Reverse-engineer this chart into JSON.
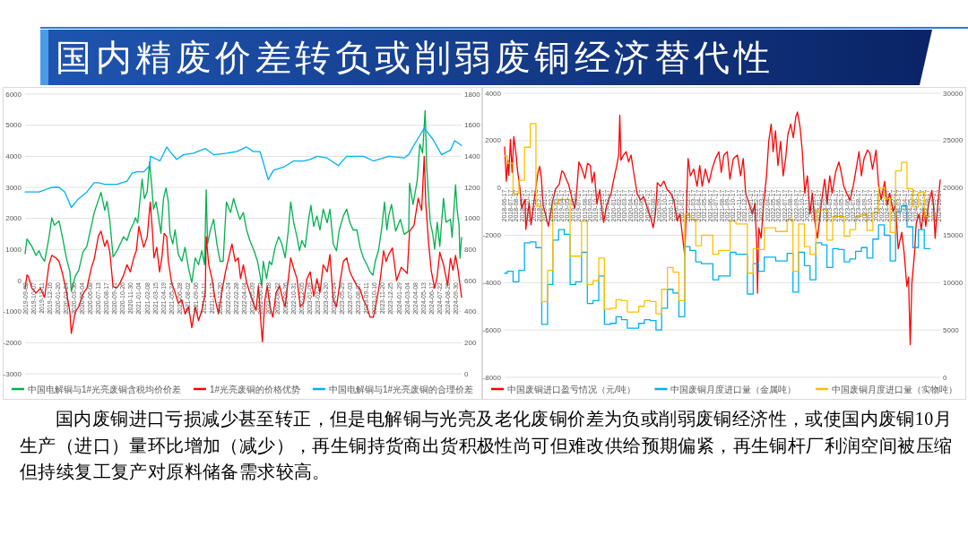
{
  "chart_data": [
    {
      "type": "line",
      "title": "国内精废价差转负或削弱废铜经济替代性",
      "annotations": [
        "国内废铜进口亏损减少甚至转正，但是电解铜与光亮及老化废铜价差为负或削弱废铜经济性，或使国内废铜10月生产（进口）量环比增加（减少），再生铜持货商出货积极性尚可但难改供给预期偏紧，再生铜杆厂利润空间被压缩但持续复工复产对原料储备需求较高。"
      ],
      "xlim": [
        "2019-09-02",
        "2024-10-25"
      ],
      "xticks": [
        "2019-09-02",
        "2019-10-07",
        "2019-11-11",
        "2019-12-16",
        "2020-01-20",
        "2020-02-24",
        "2020-03-30",
        "2020-05-04",
        "2020-06-08",
        "2020-07-13",
        "2020-08-17",
        "2020-09-21",
        "2020-10-26",
        "2020-11-30",
        "2021-01-04",
        "2021-02-08",
        "2021-03-15",
        "2021-04-19",
        "2021-05-24",
        "2021-06-28",
        "2021-08-02",
        "2021-09-06",
        "2021-10-11",
        "2021-11-15",
        "2021-12-20",
        "2022-01-24",
        "2022-02-28",
        "2022-04-04",
        "2022-05-09",
        "2022-06-13",
        "2022-07-18",
        "2022-08-22",
        "2022-09-26",
        "2022-10-31",
        "2022-12-05",
        "2023-01-09",
        "2023-02-13",
        "2023-03-20",
        "2023-04-24",
        "2023-05-29",
        "2023-07-03",
        "2023-08-07",
        "2023-09-11",
        "2023-10-16",
        "2023-11-20",
        "2023-12-25",
        "2024-01-29",
        "2024-03-04",
        "2024-04-08",
        "2024-05-13",
        "2024-06-17",
        "2024-07-22",
        "2024-08-26",
        "2024-09-30"
      ],
      "ylim": [
        -3000,
        6000
      ],
      "yticks": [
        -3000,
        -2000,
        -1000,
        0,
        1000,
        2000,
        3000,
        4000,
        5000,
        6000
      ],
      "y2lim": [
        0,
        1800
      ],
      "y2ticks": [
        0,
        200,
        400,
        600,
        800,
        1000,
        1200,
        1400,
        1600,
        1800
      ],
      "grid": "y",
      "legend": "bottom",
      "series": [
        {
          "name": "中国电解铜与1#光亮废铜含税均价价差",
          "color": "#00b050",
          "x": [
            "2019-09-02",
            "2019-09-10",
            "2019-10-01",
            "2019-10-19",
            "2019-11-01",
            "2019-11-12",
            "2019-11-25",
            "2019-12-14",
            "2019-12-26",
            "2020-01-06",
            "2020-01-26",
            "2020-02-10",
            "2020-02-27",
            "2020-03-13",
            "2020-03-19",
            "2020-04-05",
            "2020-04-20",
            "2020-05-08",
            "2020-05-25",
            "2020-06-14",
            "2020-06-25",
            "2020-07-14",
            "2020-07-25",
            "2020-08-10",
            "2020-08-20",
            "2020-09-01",
            "2020-09-15",
            "2020-10-02",
            "2020-10-16",
            "2020-10-30",
            "2020-11-14",
            "2020-11-28",
            "2020-12-13",
            "2020-12-20",
            "2020-12-30",
            "2021-01-08",
            "2021-01-18",
            "2021-01-28",
            "2021-02-09",
            "2021-02-19",
            "2021-02-28",
            "2021-03-08",
            "2021-03-19",
            "2021-03-29",
            "2021-04-09",
            "2021-04-20",
            "2021-05-01",
            "2021-05-11",
            "2021-05-18",
            "2021-05-30",
            "2021-06-09",
            "2021-06-23",
            "2021-07-08",
            "2021-07-22",
            "2021-08-06",
            "2021-08-20",
            "2021-09-04",
            "2021-09-18",
            "2021-10-02",
            "2021-10-14",
            "2021-10-21",
            "2021-10-27",
            "2021-11-08",
            "2021-11-22",
            "2021-12-06",
            "2021-12-20",
            "2022-01-02",
            "2022-01-16",
            "2022-02-03",
            "2022-02-16",
            "2022-03-01",
            "2022-03-15",
            "2022-03-30",
            "2022-04-13",
            "2022-04-27",
            "2022-05-15",
            "2022-05-30",
            "2022-06-10",
            "2022-06-17",
            "2022-06-24",
            "2022-07-08",
            "2022-07-20",
            "2022-07-30",
            "2022-08-14",
            "2022-08-29",
            "2022-09-12",
            "2022-09-26",
            "2022-10-10",
            "2022-10-20",
            "2022-11-02",
            "2022-11-16",
            "2022-11-27",
            "2022-12-07",
            "2022-12-21",
            "2023-01-05",
            "2023-01-15",
            "2023-01-27",
            "2023-02-10",
            "2023-02-23",
            "2023-03-09",
            "2023-03-26",
            "2023-04-07",
            "2023-04-21",
            "2023-05-05",
            "2023-05-17",
            "2023-06-04",
            "2023-06-18",
            "2023-07-02",
            "2023-07-16",
            "2023-08-01",
            "2023-08-15",
            "2023-08-29",
            "2023-09-13",
            "2023-09-27",
            "2023-10-09",
            "2023-10-19",
            "2023-11-02",
            "2023-11-17",
            "2023-11-28",
            "2023-12-08",
            "2023-12-16",
            "2023-12-28",
            "2024-01-15",
            "2024-02-04",
            "2024-02-21",
            "2024-03-11",
            "2024-03-15",
            "2024-03-30",
            "2024-04-17",
            "2024-04-28",
            "2024-05-10",
            "2024-05-21",
            "2024-05-28",
            "2024-06-12",
            "2024-06-23",
            "2024-07-01",
            "2024-07-12",
            "2024-07-23",
            "2024-08-08",
            "2024-08-19",
            "2024-09-07",
            "2024-09-14",
            "2024-09-29",
            "2024-10-06",
            "2024-10-14",
            "2024-10-18",
            "2024-10-25"
          ],
          "values": [
            870,
            1340,
            1100,
            810,
            960,
            760,
            620,
            1390,
            2020,
            1780,
            1920,
            1390,
            720,
            280,
            -350,
            140,
            330,
            910,
            1100,
            1780,
            2170,
            2600,
            2840,
            2260,
            2550,
            1920,
            760,
            960,
            1180,
            1410,
            1290,
            1630,
            1860,
            2020,
            1860,
            2530,
            3260,
            2640,
            2870,
            3820,
            3090,
            2300,
            2530,
            2080,
            1520,
            2640,
            2980,
            2530,
            1520,
            1180,
            1630,
            840,
            620,
            1070,
            390,
            -60,
            730,
            510,
            960,
            510,
            2920,
            1180,
            1630,
            1970,
            1180,
            620,
            620,
            2530,
            2190,
            2640,
            2300,
            1970,
            2190,
            1630,
            1290,
            960,
            620,
            170,
            -170,
            620,
            60,
            620,
            510,
            1070,
            1410,
            1180,
            730,
            1630,
            2530,
            1860,
            1410,
            960,
            1290,
            1070,
            1970,
            2420,
            1740,
            2080,
            1630,
            2300,
            1860,
            2300,
            1180,
            960,
            1630,
            2080,
            2300,
            1860,
            1630,
            1630,
            1070,
            730,
            510,
            280,
            170,
            620,
            960,
            1740,
            2530,
            1630,
            2080,
            2450,
            1590,
            1970,
            1490,
            1590,
            3130,
            2450,
            3230,
            4390,
            4100,
            5470,
            3610,
            1880,
            1490,
            1010,
            1880,
            1100,
            2650,
            1880,
            1970,
            1390,
            3080,
            2260,
            1780,
            720,
            1390
          ]
        },
        {
          "name": "1#光亮废铜的价格优势",
          "color": "#ff0000",
          "x": [
            "2019-09-02",
            "2019-09-10",
            "2019-09-16",
            "2019-10-01",
            "2019-10-19",
            "2019-11-07",
            "2019-11-25",
            "2019-12-14",
            "2019-12-26",
            "2020-01-14",
            "2020-01-26",
            "2020-02-10",
            "2020-02-27",
            "2020-03-13",
            "2020-03-19",
            "2020-04-05",
            "2020-04-20",
            "2020-05-08",
            "2020-05-25",
            "2020-06-14",
            "2020-06-25",
            "2020-07-14",
            "2020-07-25",
            "2020-08-10",
            "2020-08-20",
            "2020-09-01",
            "2020-09-15",
            "2020-10-02",
            "2020-10-16",
            "2020-10-30",
            "2020-11-14",
            "2020-11-28",
            "2020-12-13",
            "2020-12-24",
            "2021-01-04",
            "2021-01-14",
            "2021-01-25",
            "2021-02-09",
            "2021-02-22",
            "2021-03-03",
            "2021-03-10",
            "2021-03-22",
            "2021-04-03",
            "2021-04-13",
            "2021-04-23",
            "2021-05-04",
            "2021-05-11",
            "2021-05-25",
            "2021-06-09",
            "2021-06-23",
            "2021-07-08",
            "2021-07-22",
            "2021-08-06",
            "2021-08-20",
            "2021-09-04",
            "2021-09-18",
            "2021-10-02",
            "2021-10-17",
            "2021-10-21",
            "2021-11-01",
            "2021-11-15",
            "2021-11-29",
            "2021-12-13",
            "2021-12-27",
            "2022-01-12",
            "2022-01-26",
            "2022-02-09",
            "2022-02-23",
            "2022-03-08",
            "2022-03-18",
            "2022-03-30",
            "2022-04-13",
            "2022-04-27",
            "2022-05-12",
            "2022-05-24",
            "2022-06-03",
            "2022-06-13",
            "2022-06-20",
            "2022-07-01",
            "2022-07-11",
            "2022-07-23",
            "2022-08-04",
            "2022-08-18",
            "2022-09-02",
            "2022-09-16",
            "2022-09-26",
            "2022-10-10",
            "2022-10-20",
            "2022-11-02",
            "2022-11-16",
            "2022-11-30",
            "2022-12-14",
            "2022-12-29",
            "2023-01-12",
            "2023-01-27",
            "2023-02-10",
            "2023-02-23",
            "2023-03-09",
            "2023-03-26",
            "2023-04-07",
            "2023-04-21",
            "2023-05-05",
            "2023-05-20",
            "2023-06-04",
            "2023-06-18",
            "2023-07-02",
            "2023-07-16",
            "2023-08-01",
            "2023-08-15",
            "2023-08-29",
            "2023-09-13",
            "2023-09-27",
            "2023-10-11",
            "2023-10-26",
            "2023-11-10",
            "2023-11-24",
            "2023-12-05",
            "2023-12-16",
            "2024-01-01",
            "2024-01-19",
            "2024-02-08",
            "2024-03-05",
            "2024-03-15",
            "2024-04-03",
            "2024-04-21",
            "2024-05-06",
            "2024-05-17",
            "2024-05-24",
            "2024-06-05",
            "2024-06-16",
            "2024-07-01",
            "2024-07-12",
            "2024-07-23",
            "2024-08-08",
            "2024-08-26",
            "2024-09-07",
            "2024-09-18",
            "2024-09-29",
            "2024-10-10",
            "2024-10-25"
          ],
          "values": [
            -250,
            180,
            140,
            -250,
            -400,
            -250,
            -540,
            520,
            810,
            720,
            620,
            230,
            -350,
            -1020,
            -1700,
            -1020,
            -830,
            -440,
            -250,
            430,
            670,
            1440,
            1590,
            1100,
            1300,
            910,
            -200,
            -230,
            -60,
            170,
            510,
            280,
            730,
            960,
            1740,
            1410,
            1070,
            1410,
            2530,
            1630,
            730,
            1070,
            280,
            730,
            1520,
            1410,
            620,
            -60,
            -390,
            -730,
            -620,
            -1070,
            -840,
            -1520,
            -840,
            -1290,
            -960,
            -390,
            1410,
            510,
            60,
            -620,
            -1070,
            -390,
            280,
            730,
            1180,
            620,
            730,
            60,
            510,
            -60,
            -390,
            -730,
            -960,
            -170,
            -1290,
            -1970,
            -620,
            -170,
            -840,
            -1180,
            -390,
            -170,
            -620,
            -840,
            60,
            730,
            390,
            60,
            -840,
            -730,
            60,
            280,
            -510,
            60,
            -390,
            510,
            280,
            840,
            -620,
            -840,
            -60,
            620,
            730,
            280,
            60,
            -170,
            -280,
            -620,
            -840,
            -1180,
            -1180,
            -620,
            60,
            960,
            620,
            840,
            1050,
            0,
            430,
            230,
            1590,
            1780,
            2650,
            2260,
            4000,
            2450,
            1200,
            330,
            -250,
            140,
            910,
            520,
            -150,
            720,
            330,
            810,
            330,
            -540
          ]
        },
        {
          "name": "中国电解铜与1#光亮废铜的合理价差",
          "color": "#00b0f0",
          "axis": "y2",
          "x": [
            "2019-09-02",
            "2019-11-01",
            "2019-12-26",
            "2020-01-26",
            "2020-02-20",
            "2020-03-05",
            "2020-03-19",
            "2020-04-15",
            "2020-05-25",
            "2020-06-25",
            "2020-07-14",
            "2020-08-10",
            "2020-10-02",
            "2020-11-14",
            "2020-12-05",
            "2020-12-27",
            "2021-01-25",
            "2021-02-20",
            "2021-02-23",
            "2021-04-05",
            "2021-05-04",
            "2021-05-18",
            "2021-06-16",
            "2021-07-15",
            "2021-08-28",
            "2021-10-17",
            "2021-11-22",
            "2022-01-19",
            "2022-03-01",
            "2022-04-13",
            "2022-05-12",
            "2022-06-10",
            "2022-06-24",
            "2022-07-15",
            "2022-08-07",
            "2022-09-19",
            "2022-11-02",
            "2022-12-14",
            "2023-01-12",
            "2023-02-10",
            "2023-03-24",
            "2023-05-13",
            "2023-06-18",
            "2023-08-30",
            "2023-10-11",
            "2023-11-24",
            "2023-12-16",
            "2024-02-21",
            "2024-03-11",
            "2024-04-06",
            "2024-05-17",
            "2024-06-23",
            "2024-07-31",
            "2024-09-07",
            "2024-09-25",
            "2024-10-25"
          ],
          "values": [
            1170,
            1170,
            1200,
            1200,
            1170,
            1120,
            1070,
            1120,
            1170,
            1230,
            1230,
            1220,
            1220,
            1240,
            1290,
            1300,
            1300,
            1340,
            1400,
            1370,
            1460,
            1430,
            1380,
            1410,
            1420,
            1450,
            1410,
            1420,
            1430,
            1460,
            1430,
            1430,
            1360,
            1250,
            1310,
            1330,
            1370,
            1370,
            1380,
            1400,
            1390,
            1340,
            1400,
            1400,
            1370,
            1390,
            1400,
            1390,
            1410,
            1480,
            1580,
            1510,
            1410,
            1440,
            1500,
            1470
          ]
        }
      ]
    },
    {
      "type": "line",
      "xlim": [
        "2018-06-17",
        "2024-10-25"
      ],
      "xticks": [
        "2018-06-17",
        "2018-07-17",
        "2018-08-17",
        "2018-09-17",
        "2018-10-17",
        "2018-11-17",
        "2018-12-17",
        "2019-01-17",
        "2019-02-17",
        "2019-03-17",
        "2019-04-17",
        "2019-05-17",
        "2019-06-17",
        "2019-07-17",
        "2019-08-17",
        "2019-09-17",
        "2019-10-17",
        "2019-11-17",
        "2019-12-17",
        "2020-01-17",
        "2020-02-17",
        "2020-03-17",
        "2020-04-17",
        "2020-05-17",
        "2020-06-17",
        "2020-07-17",
        "2020-08-17",
        "2020-09-17",
        "2020-10-17",
        "2020-11-17",
        "2020-12-17",
        "2021-01-17",
        "2021-02-17",
        "2021-03-17",
        "2021-04-17",
        "2021-05-17",
        "2021-06-17",
        "2021-07-17",
        "2021-08-17",
        "2021-09-17",
        "2021-10-17",
        "2021-11-17",
        "2021-12-17",
        "2022-01-17",
        "2022-02-17",
        "2022-03-17",
        "2022-04-17",
        "2022-05-17",
        "2022-06-17",
        "2022-07-17",
        "2022-08-17",
        "2022-09-17",
        "2022-10-17",
        "2022-11-17",
        "2022-12-17",
        "2023-01-17",
        "2023-02-17",
        "2023-03-17",
        "2023-04-17",
        "2023-05-17",
        "2023-06-17",
        "2023-07-17",
        "2023-08-17",
        "2023-09-17",
        "2023-10-17",
        "2023-11-17",
        "2023-12-17",
        "2024-01-17",
        "2024-02-17",
        "2024-03-17",
        "2024-04-17",
        "2024-05-17",
        "2024-06-17",
        "2024-07-17",
        "2024-08-17",
        "2024-09-17",
        "2024-10-17"
      ],
      "ylim": [
        -8000,
        4000
      ],
      "yticks": [
        -8000,
        -6000,
        -4000,
        -2000,
        0,
        2000,
        4000
      ],
      "y2lim": [
        0,
        30000
      ],
      "y2ticks": [
        0,
        5000,
        10000,
        15000,
        20000,
        25000,
        30000
      ],
      "grid": "y",
      "legend": "bottom",
      "series": [
        {
          "name": "中国废铜进口盈亏情况（元/吨）",
          "color": "#ff0000",
          "x": [
            "2018-06-17",
            "2018-06-26",
            "2018-07-04",
            "2018-07-09",
            "2018-07-18",
            "2018-07-27",
            "2018-08-05",
            "2018-08-19",
            "2018-08-23",
            "2018-09-07",
            "2018-09-16",
            "2018-10-04",
            "2018-10-08",
            "2018-10-26",
            "2018-11-05",
            "2018-11-24",
            "2018-12-12",
            "2018-12-21",
            "2018-12-30",
            "2019-01-08",
            "2019-01-25",
            "2019-02-05",
            "2019-02-19",
            "2019-03-02",
            "2019-03-16",
            "2019-04-04",
            "2019-04-18",
            "2019-04-27",
            "2019-05-10",
            "2019-05-24",
            "2019-06-12",
            "2019-06-26",
            "2019-07-04",
            "2019-07-18",
            "2019-08-01",
            "2019-08-19",
            "2019-09-02",
            "2019-09-17",
            "2019-09-26",
            "2019-10-08",
            "2019-10-22",
            "2019-11-06",
            "2019-11-18",
            "2019-11-27",
            "2019-12-11",
            "2019-12-23",
            "2020-01-06",
            "2020-01-20",
            "2020-02-03",
            "2020-02-15",
            "2020-02-21",
            "2020-02-27",
            "2020-03-12",
            "2020-03-26",
            "2020-04-08",
            "2020-04-21",
            "2020-05-05",
            "2020-05-23",
            "2020-06-10",
            "2020-06-27",
            "2020-07-15",
            "2020-08-03",
            "2020-08-17",
            "2020-08-29",
            "2020-09-08",
            "2020-09-25",
            "2020-10-13",
            "2020-10-30",
            "2020-11-18",
            "2020-12-05",
            "2020-12-23",
            "2021-01-07",
            "2021-01-19",
            "2021-02-01",
            "2021-02-11",
            "2021-02-19",
            "2021-03-03",
            "2021-03-21",
            "2021-04-08",
            "2021-04-22",
            "2021-05-05",
            "2021-05-22",
            "2021-06-10",
            "2021-06-27",
            "2021-07-15",
            "2021-08-02",
            "2021-08-15",
            "2021-08-29",
            "2021-09-16",
            "2021-09-30",
            "2021-10-18",
            "2021-11-09",
            "2021-11-26",
            "2021-12-10",
            "2021-12-23",
            "2022-01-10",
            "2022-01-28",
            "2022-02-10",
            "2022-02-20",
            "2022-02-24",
            "2022-03-03",
            "2022-03-15",
            "2022-03-29",
            "2022-04-13",
            "2022-04-25",
            "2022-05-08",
            "2022-05-18",
            "2022-05-31",
            "2022-06-13",
            "2022-06-27",
            "2022-07-11",
            "2022-07-24",
            "2022-08-05",
            "2022-08-20",
            "2022-09-03",
            "2022-09-16",
            "2022-09-25",
            "2022-10-09",
            "2022-10-21",
            "2022-11-03",
            "2022-11-17",
            "2022-12-01",
            "2022-12-13",
            "2022-12-26",
            "2023-01-10",
            "2023-01-24",
            "2023-02-06",
            "2023-02-17",
            "2023-03-02",
            "2023-03-16",
            "2023-03-29",
            "2023-04-16",
            "2023-05-04",
            "2023-05-16",
            "2023-05-30",
            "2023-06-14",
            "2023-07-02",
            "2023-07-19",
            "2023-08-07",
            "2023-08-19",
            "2023-09-01",
            "2023-09-15",
            "2023-10-03",
            "2023-10-16",
            "2023-10-30",
            "2023-11-18",
            "2023-12-01",
            "2023-12-15",
            "2024-01-03",
            "2024-01-16",
            "2024-01-30",
            "2024-02-17",
            "2024-03-01",
            "2024-03-15",
            "2024-04-03",
            "2024-04-16",
            "2024-04-30",
            "2024-05-09",
            "2024-05-18",
            "2024-05-27",
            "2024-06-10",
            "2024-06-19",
            "2024-07-03",
            "2024-07-16",
            "2024-07-30",
            "2024-08-09",
            "2024-08-23",
            "2024-09-10",
            "2024-09-19",
            "2024-09-28",
            "2024-10-06",
            "2024-10-25"
          ],
          "values": [
            1730,
            280,
            1160,
            530,
            2050,
            660,
            2170,
            1290,
            850,
            -40,
            -860,
            -480,
            -1750,
            -610,
            -1560,
            -350,
            660,
            910,
            400,
            -730,
            -1240,
            -1620,
            -990,
            -480,
            -40,
            150,
            720,
            660,
            400,
            150,
            -480,
            -860,
            -350,
            1100,
            850,
            400,
            1040,
            950,
            220,
            660,
            -660,
            -70,
            -950,
            -1460,
            -800,
            -510,
            -220,
            370,
            880,
            1390,
            3070,
            1170,
            1390,
            1530,
            1100,
            1390,
            660,
            -220,
            -510,
            -370,
            -800,
            -1240,
            -1680,
            -1100,
            220,
            70,
            290,
            -70,
            -220,
            -510,
            -1390,
            -1100,
            -1970,
            -2850,
            -660,
            1240,
            510,
            800,
            70,
            950,
            70,
            800,
            220,
            800,
            1240,
            1530,
            660,
            1390,
            1530,
            370,
            1240,
            1390,
            510,
            1240,
            -220,
            -660,
            -1100,
            -660,
            -2410,
            -4450,
            -1680,
            -2120,
            -660,
            510,
            1970,
            2700,
            1530,
            2410,
            950,
            1970,
            510,
            1240,
            2260,
            2700,
            2120,
            2990,
            3210,
            2560,
            1530,
            -220,
            510,
            -1100,
            -220,
            -1390,
            -2120,
            -1100,
            -220,
            370,
            -660,
            510,
            -220,
            660,
            1100,
            660,
            70,
            -220,
            -510,
            70,
            950,
            1530,
            510,
            1240,
            1600,
            1480,
            790,
            1600,
            150,
            -480,
            280,
            -730,
            -230,
            -990,
            -730,
            -2570,
            -1870,
            -2760,
            -4150,
            -3770,
            -6620,
            -4020,
            -2760,
            -1490,
            -1110,
            -1750,
            -860,
            -1620,
            -730,
            -100,
            -730,
            -2130,
            -1240,
            340
          ]
        },
        {
          "name": "中国废铜月度进口量（金属吨）",
          "color": "#00b0f0",
          "axis": "y2",
          "type": "step",
          "x": [
            "2018-06-17",
            "2018-07-01",
            "2018-08-01",
            "2018-09-01",
            "2018-10-01",
            "2018-11-01",
            "2018-12-01",
            "2019-01-01",
            "2019-02-01",
            "2019-03-01",
            "2019-04-01",
            "2019-05-01",
            "2019-06-01",
            "2019-07-01",
            "2019-08-01",
            "2019-09-01",
            "2019-10-01",
            "2019-11-01",
            "2019-12-01",
            "2020-01-01",
            "2020-02-01",
            "2020-03-01",
            "2020-04-01",
            "2020-05-01",
            "2020-06-01",
            "2020-07-01",
            "2020-08-01",
            "2020-09-01",
            "2020-10-01",
            "2020-11-01",
            "2020-12-01",
            "2021-01-01",
            "2021-02-01",
            "2021-03-01",
            "2021-04-01",
            "2021-05-01",
            "2021-06-01",
            "2021-07-01",
            "2021-08-01",
            "2021-09-01",
            "2021-10-01",
            "2021-11-01",
            "2021-12-01",
            "2022-01-01",
            "2022-02-01",
            "2022-03-01",
            "2022-04-01",
            "2022-05-01",
            "2022-06-01",
            "2022-07-01",
            "2022-08-01",
            "2022-09-01",
            "2022-10-01",
            "2022-11-01",
            "2022-12-01",
            "2023-01-01",
            "2023-02-01",
            "2023-03-01",
            "2023-04-01",
            "2023-05-01",
            "2023-06-01",
            "2023-07-01",
            "2023-08-01",
            "2023-09-01",
            "2023-10-01",
            "2023-11-01",
            "2023-12-01",
            "2024-01-01",
            "2024-02-01",
            "2024-03-01",
            "2024-04-01",
            "2024-05-01",
            "2024-06-01",
            "2024-07-01",
            "2024-08-01",
            "2024-09-01"
          ],
          "values": [
            11000,
            11200,
            10100,
            11300,
            14200,
            14300,
            13700,
            5600,
            9800,
            14500,
            15600,
            15100,
            9800,
            10100,
            13200,
            7800,
            8100,
            10700,
            5600,
            5700,
            6400,
            6100,
            5200,
            5200,
            5700,
            6100,
            6000,
            5000,
            7300,
            9300,
            8900,
            6400,
            13800,
            13400,
            12200,
            12000,
            12000,
            10300,
            10700,
            10700,
            13200,
            13000,
            13000,
            8800,
            12000,
            11200,
            12700,
            12700,
            12300,
            12300,
            13100,
            9000,
            13200,
            11800,
            10300,
            14200,
            14000,
            11600,
            13600,
            13500,
            12200,
            12500,
            13300,
            13700,
            12600,
            14600,
            16100,
            15000,
            12300,
            17500,
            18100,
            15900,
            13700,
            15600,
            13600,
            13600
          ]
        },
        {
          "name": "中国废铜月度进口量（实物吨）",
          "color": "#ffc000",
          "axis": "y2",
          "type": "step",
          "x": [
            "2018-06-17",
            "2018-07-01",
            "2018-08-01",
            "2018-09-01",
            "2018-10-01",
            "2018-11-01",
            "2018-12-01",
            "2019-01-01",
            "2019-02-01",
            "2019-03-01",
            "2019-04-01",
            "2019-05-01",
            "2019-06-01",
            "2019-07-01",
            "2019-08-01",
            "2019-09-01",
            "2019-10-01",
            "2019-11-01",
            "2019-12-01",
            "2020-01-01",
            "2020-02-01",
            "2020-03-01",
            "2020-04-01",
            "2020-05-01",
            "2020-06-01",
            "2020-07-01",
            "2020-08-01",
            "2020-09-01",
            "2020-10-01",
            "2020-11-01",
            "2020-12-01",
            "2021-01-01",
            "2021-02-01",
            "2021-03-01",
            "2021-04-01",
            "2021-05-01",
            "2021-06-01",
            "2021-07-01",
            "2021-08-01",
            "2021-09-01",
            "2021-10-01",
            "2021-11-01",
            "2021-12-01",
            "2022-01-01",
            "2022-02-01",
            "2022-03-01",
            "2022-04-01",
            "2022-05-01",
            "2022-06-01",
            "2022-07-01",
            "2022-08-01",
            "2022-09-01",
            "2022-10-01",
            "2022-11-01",
            "2022-12-01",
            "2023-01-01",
            "2023-02-01",
            "2023-03-01",
            "2023-04-01",
            "2023-05-01",
            "2023-06-01",
            "2023-07-01",
            "2023-08-01",
            "2023-09-01",
            "2023-10-01",
            "2023-11-01",
            "2023-12-01",
            "2024-01-01",
            "2024-02-01",
            "2024-03-01",
            "2024-04-01",
            "2024-05-01",
            "2024-06-01",
            "2024-07-01",
            "2024-08-01",
            "2024-09-01"
          ],
          "values": [
            23400,
            22600,
            19400,
            20800,
            24300,
            26800,
            18100,
            8000,
            11300,
            18400,
            18800,
            18800,
            12800,
            12800,
            16500,
            9800,
            10200,
            12600,
            7200,
            7300,
            8200,
            8100,
            6900,
            6900,
            7500,
            8100,
            8000,
            6700,
            9300,
            11600,
            11100,
            8100,
            17200,
            16700,
            13900,
            15000,
            15000,
            13000,
            13400,
            13400,
            16500,
            16200,
            16200,
            11000,
            13600,
            13500,
            15800,
            15800,
            15400,
            15400,
            16700,
            11200,
            16200,
            13800,
            13000,
            17600,
            17700,
            14500,
            17000,
            17000,
            14900,
            15600,
            17000,
            17200,
            15500,
            17400,
            20000,
            18900,
            15300,
            21800,
            22700,
            19900,
            18000,
            19500,
            17000,
            17000
          ]
        }
      ]
    }
  ]
}
